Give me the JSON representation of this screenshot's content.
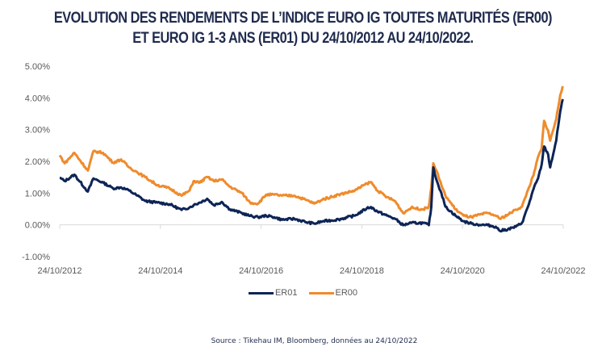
{
  "chart_data": {
    "type": "line",
    "title": "EVOLUTION DES RENDEMENTS DE L’INDICE EURO IG TOUTES MATURITÉS (ER00)",
    "subtitle": "ET EURO IG 1-3 ANS (ER01) DU 24/10/2012 AU 24/10/2022.",
    "xlabel": "",
    "ylabel": "",
    "x_type": "date-year-fraction",
    "xlim": [
      2012.81,
      2022.81
    ],
    "ylim": [
      -0.01,
      0.05
    ],
    "y_ticks": [
      {
        "value": 0.05,
        "label": "5.00%"
      },
      {
        "value": 0.04,
        "label": "4.00%"
      },
      {
        "value": 0.03,
        "label": "3.00%"
      },
      {
        "value": 0.02,
        "label": "2.00%"
      },
      {
        "value": 0.01,
        "label": "1.00%"
      },
      {
        "value": 0.0,
        "label": "0.00%"
      },
      {
        "value": -0.01,
        "label": "-1.00%"
      }
    ],
    "x_ticks": [
      {
        "value": 2012.81,
        "label": "24/10/2012"
      },
      {
        "value": 2014.81,
        "label": "24/10/2014"
      },
      {
        "value": 2016.81,
        "label": "24/10/2016"
      },
      {
        "value": 2018.81,
        "label": "24/10/2018"
      },
      {
        "value": 2020.81,
        "label": "24/10/2020"
      },
      {
        "value": 2022.81,
        "label": "24/10/2022"
      }
    ],
    "grid": false,
    "legend_position": "bottom",
    "x": [
      2012.81,
      2012.91,
      2013.1,
      2013.37,
      2013.48,
      2013.67,
      2013.87,
      2014.03,
      2014.19,
      2014.35,
      2014.51,
      2014.75,
      2014.99,
      2015.23,
      2015.39,
      2015.47,
      2015.59,
      2015.74,
      2015.87,
      2016.03,
      2016.19,
      2016.43,
      2016.59,
      2016.75,
      2016.91,
      2017.07,
      2017.23,
      2017.47,
      2017.71,
      2017.87,
      2018.03,
      2018.35,
      2018.67,
      2018.91,
      2018.99,
      2019.12,
      2019.31,
      2019.47,
      2019.63,
      2019.79,
      2020.03,
      2020.14,
      2020.19,
      2020.23,
      2020.3,
      2020.39,
      2020.47,
      2020.67,
      2020.83,
      2020.99,
      2021.15,
      2021.31,
      2021.47,
      2021.55,
      2021.71,
      2021.87,
      2021.99,
      2022.11,
      2022.22,
      2022.31,
      2022.38,
      2022.43,
      2022.51,
      2022.55,
      2022.67,
      2022.75,
      2022.8
    ],
    "series": [
      {
        "name": "ER01",
        "color": "#0d2455",
        "values": [
          1.48,
          1.38,
          1.58,
          1.05,
          1.46,
          1.33,
          1.15,
          1.18,
          1.08,
          0.92,
          0.75,
          0.7,
          0.65,
          0.47,
          0.55,
          0.62,
          0.7,
          0.82,
          0.62,
          0.72,
          0.49,
          0.37,
          0.28,
          0.24,
          0.29,
          0.24,
          0.16,
          0.19,
          0.08,
          0.04,
          0.11,
          0.17,
          0.29,
          0.52,
          0.56,
          0.42,
          0.29,
          0.19,
          -0.01,
          0.06,
          0.06,
          -0.01,
          0.57,
          1.81,
          1.38,
          1.0,
          0.57,
          0.29,
          0.11,
          0.04,
          0.0,
          -0.01,
          -0.06,
          -0.19,
          -0.14,
          -0.06,
          0.06,
          0.57,
          1.13,
          1.46,
          1.89,
          2.47,
          2.22,
          1.81,
          2.65,
          3.58,
          3.96
        ]
      },
      {
        "name": "ER00",
        "color": "#ef8b2c",
        "values": [
          2.19,
          1.94,
          2.27,
          1.71,
          2.32,
          2.27,
          1.96,
          2.06,
          1.81,
          1.66,
          1.5,
          1.25,
          1.15,
          0.92,
          1.08,
          1.38,
          1.33,
          1.51,
          1.38,
          1.43,
          1.2,
          1.0,
          0.7,
          0.67,
          0.95,
          0.95,
          0.92,
          0.92,
          0.78,
          0.67,
          0.8,
          0.95,
          1.08,
          1.3,
          1.35,
          1.08,
          0.87,
          0.75,
          0.37,
          0.54,
          0.49,
          0.57,
          1.18,
          1.94,
          1.68,
          1.25,
          0.92,
          0.49,
          0.29,
          0.24,
          0.32,
          0.37,
          0.29,
          0.19,
          0.32,
          0.48,
          0.57,
          1.1,
          1.56,
          2.14,
          2.39,
          3.28,
          2.97,
          2.65,
          3.33,
          4.09,
          4.37
        ]
      }
    ]
  },
  "legend": {
    "items": [
      {
        "label": "ER01",
        "color": "#0d2455"
      },
      {
        "label": "ER00",
        "color": "#ef8b2c"
      }
    ]
  },
  "source": "Source : Tikehau IM, Bloomberg, données au 24/10/2022"
}
